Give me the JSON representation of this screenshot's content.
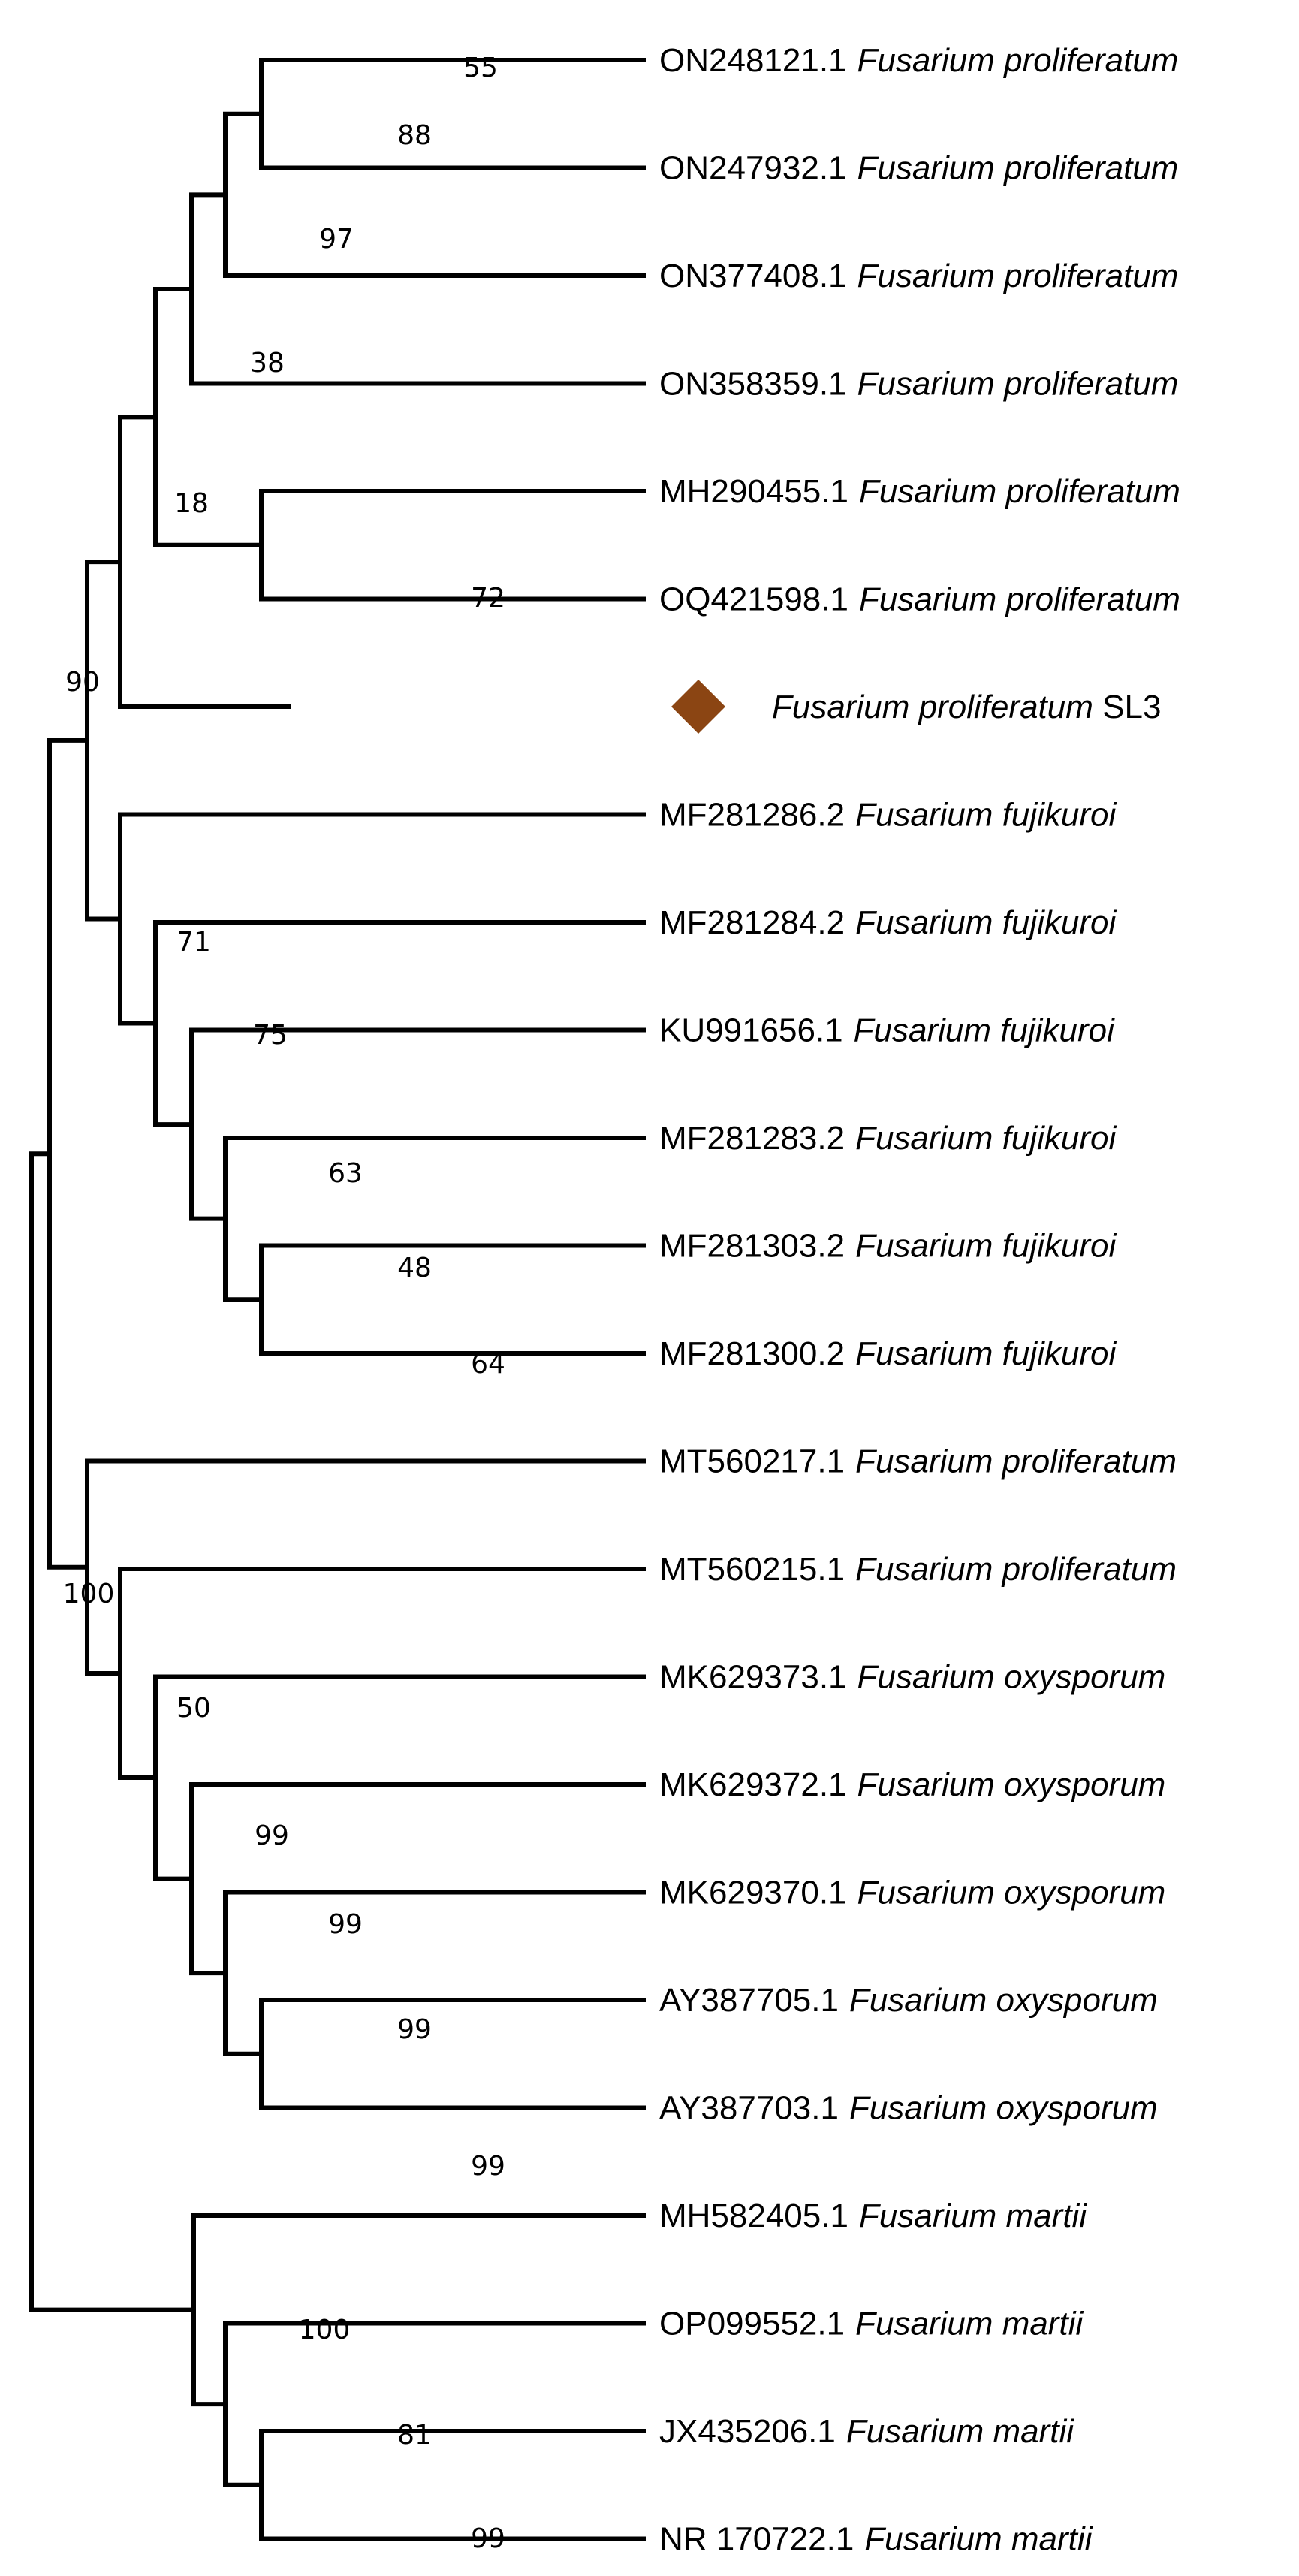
{
  "marker_color": "#8B4513",
  "taxa": [
    {
      "accession": "ON248121.1",
      "species": "Fusarium proliferatum",
      "suffix": ""
    },
    {
      "accession": "ON247932.1",
      "species": "Fusarium  proliferatum",
      "suffix": ""
    },
    {
      "accession": "ON377408.1",
      "species": "Fusarium  proliferatum",
      "suffix": ""
    },
    {
      "accession": "ON358359.1",
      "species": "Fusarium  proliferatum",
      "suffix": ""
    },
    {
      "accession": "MH290455.1",
      "species": "Fusarium  proliferatum",
      "suffix": ""
    },
    {
      "accession": "OQ421598.1",
      "species": "Fusarium proliferatum",
      "suffix": ""
    },
    {
      "accession": "",
      "species": "Fusarium proliferatum",
      "suffix": " SL3",
      "marker": "diamond"
    },
    {
      "accession": "MF281286.2",
      "species": "Fusarium fujikuroi",
      "suffix": ""
    },
    {
      "accession": "MF281284.2",
      "species": "Fusarium fujikuroi",
      "suffix": ""
    },
    {
      "accession": "KU991656.1",
      "species": "Fusarium fujikuroi",
      "suffix": ""
    },
    {
      "accession": "MF281283.2",
      "species": "Fusarium fujikuroi",
      "suffix": ""
    },
    {
      "accession": "MF281303.2",
      "species": "Fusarium fujikuroi",
      "suffix": ""
    },
    {
      "accession": "MF281300.2",
      "species": "Fusarium fujikuroi",
      "suffix": ""
    },
    {
      "accession": "MT560217.1",
      "species": "Fusarium proliferatum",
      "suffix": ""
    },
    {
      "accession": "MT560215.1",
      "species": "Fusarium proliferatum",
      "suffix": ""
    },
    {
      "accession": "MK629373.1",
      "species": "Fusarium oxysporum",
      "suffix": ""
    },
    {
      "accession": "MK629372.1",
      "species": "Fusarium oxysporum",
      "suffix": ""
    },
    {
      "accession": "MK629370.1",
      "species": "Fusarium oxysporum",
      "suffix": ""
    },
    {
      "accession": "AY387705.1",
      "species": "Fusarium oxysporum",
      "suffix": ""
    },
    {
      "accession": "AY387703.1",
      "species": "Fusarium oxysporum",
      "suffix": ""
    },
    {
      "accession": "MH582405.1",
      "species": "Fusarium martii",
      "suffix": ""
    },
    {
      "accession": "OP099552.1",
      "species": "Fusarium martii",
      "suffix": ""
    },
    {
      "accession": "JX435206.1",
      "species": "Fusarium martii",
      "suffix": ""
    },
    {
      "accession": "NR 170722.1",
      "species": "Fusarium martii",
      "suffix": ""
    }
  ],
  "support": {
    "n55": "55",
    "n88": "88",
    "n97": "97",
    "n38": "38",
    "n18": "18",
    "n90": "90",
    "n72": "72",
    "n71": "71",
    "n75": "75",
    "n63": "63",
    "n48": "48",
    "n64": "64",
    "n100a": "100",
    "n50": "50",
    "n99a": "99",
    "n99b": "99",
    "n99c": "99",
    "n99d": "99",
    "n100b": "100",
    "n81": "81",
    "n99e": "99"
  }
}
